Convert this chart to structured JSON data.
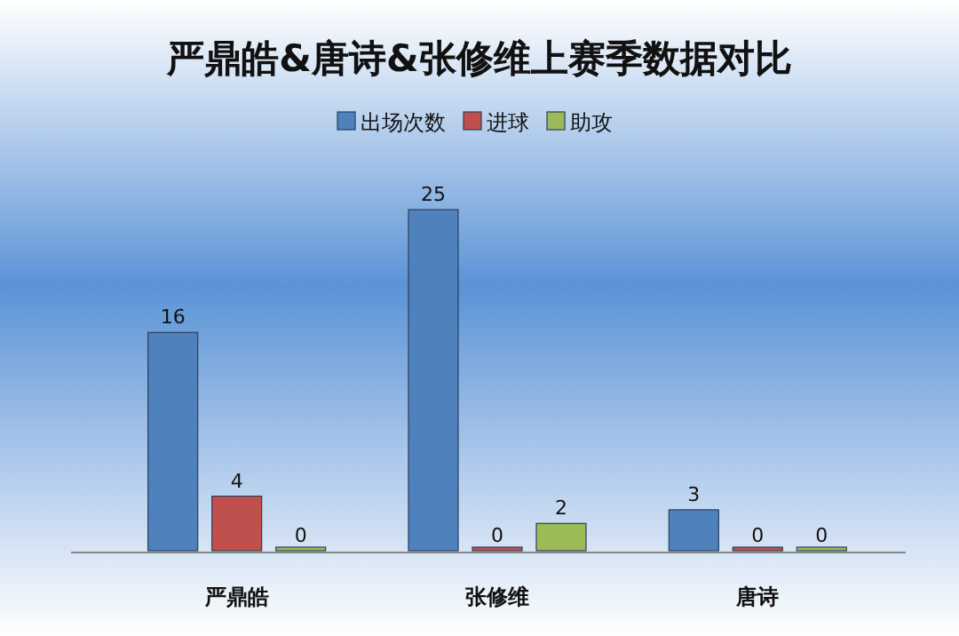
{
  "chart_data": {
    "type": "bar",
    "title": "严鼎皓&唐诗&张修维上赛季数据对比",
    "categories": [
      "严鼎皓",
      "张修维",
      "唐诗"
    ],
    "series": [
      {
        "name": "出场次数",
        "color": "#4f81bd",
        "values": [
          16,
          25,
          3
        ]
      },
      {
        "name": "进球",
        "color": "#c0504d",
        "values": [
          4,
          0,
          0
        ]
      },
      {
        "name": "助攻",
        "color": "#9bbb59",
        "values": [
          0,
          2,
          0
        ]
      }
    ],
    "data_labels": true,
    "legend": "top right"
  }
}
